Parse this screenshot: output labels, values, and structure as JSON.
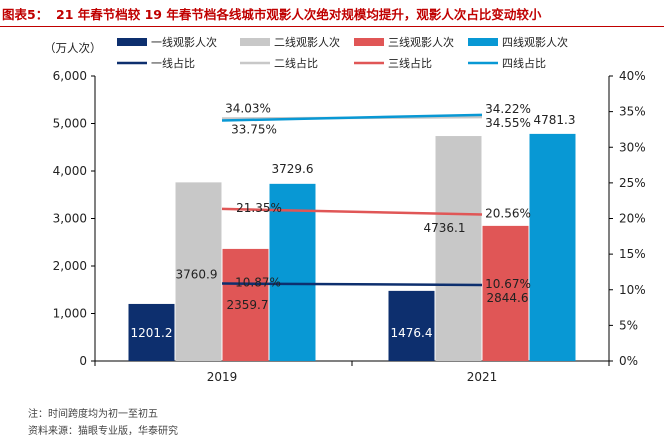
{
  "title": {
    "prefix": "图表5：",
    "text": "21 年春节档较 19 年春节档各线城市观影人次绝对规模均提升，观影人次占比变动较小"
  },
  "unit_label": "（万人次）",
  "footer": {
    "note": "注：时间跨度均为初一至初五",
    "source": "资料来源：猫眼专业版，华泰研究"
  },
  "chart_data": {
    "type": "bar",
    "categories": [
      "2019",
      "2021"
    ],
    "series": [
      {
        "name": "一线观影人次",
        "values": [
          1201.2,
          1476.4
        ],
        "color": "#0d2f6e",
        "label_color": "#ffffff"
      },
      {
        "name": "二线观影人次",
        "values": [
          3760.9,
          4736.1
        ],
        "color": "#c8c8c8",
        "label_color": "#222222"
      },
      {
        "name": "三线观影人次",
        "values": [
          2359.7,
          2844.6
        ],
        "color": "#e05656",
        "label_color": "#222222"
      },
      {
        "name": "四线观影人次",
        "values": [
          3729.6,
          4781.3
        ],
        "color": "#0898d4",
        "label_color": "#222222"
      }
    ],
    "line_series": [
      {
        "name": "一线占比",
        "values": [
          10.87,
          10.67
        ],
        "labels": [
          "10.87%",
          "10.67%"
        ],
        "color": "#0d2f6e"
      },
      {
        "name": "二线占比",
        "values": [
          34.03,
          34.22
        ],
        "labels": [
          "34.03%",
          "34.22%"
        ],
        "color": "#c8c8c8"
      },
      {
        "name": "三线占比",
        "values": [
          21.35,
          20.56
        ],
        "labels": [
          "21.35%",
          "20.56%"
        ],
        "color": "#e05656"
      },
      {
        "name": "四线占比",
        "values": [
          33.75,
          34.55
        ],
        "labels": [
          "33.75%",
          "34.55%"
        ],
        "color": "#0898d4"
      }
    ],
    "ylim": [
      0,
      6000
    ],
    "yticks": [
      0,
      1000,
      2000,
      3000,
      4000,
      5000,
      6000
    ],
    "ytick_labels": [
      "0",
      "1,000",
      "2,000",
      "3,000",
      "4,000",
      "5,000",
      "6,000"
    ],
    "y2lim": [
      0,
      40
    ],
    "y2ticks": [
      0,
      5,
      10,
      15,
      20,
      25,
      30,
      35,
      40
    ],
    "y2tick_labels": [
      "0%",
      "5%",
      "10%",
      "15%",
      "20%",
      "25%",
      "30%",
      "35%",
      "40%"
    ],
    "grid": false,
    "legend_position": "top"
  }
}
